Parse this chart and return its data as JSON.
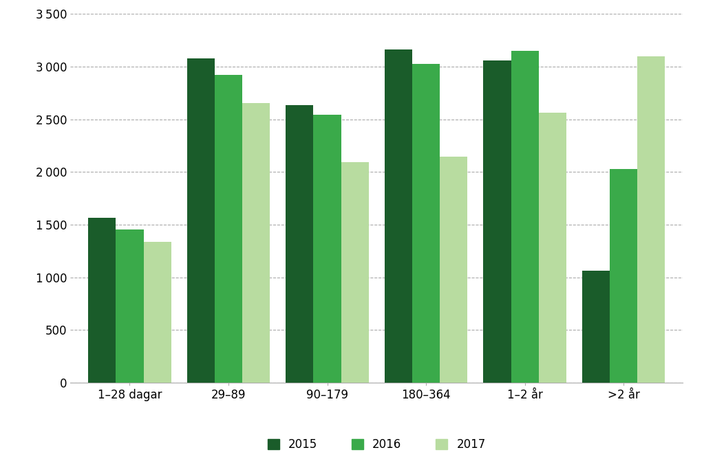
{
  "categories": [
    "1–28 dagar",
    "29–89",
    "90–179",
    "180–364",
    "1–2 år",
    ">2 år"
  ],
  "series": {
    "2015": [
      1565,
      3080,
      2635,
      3160,
      3055,
      1065
    ],
    "2016": [
      1455,
      2920,
      2540,
      3025,
      3150,
      2025
    ],
    "2017": [
      1335,
      2650,
      2095,
      2145,
      2560,
      3095
    ]
  },
  "colors": {
    "2015": "#1a5c2a",
    "2016": "#3aaa4a",
    "2017": "#b8dca0"
  },
  "legend_labels": [
    "2015",
    "2016",
    "2017"
  ],
  "ylim": [
    0,
    3500
  ],
  "yticks": [
    0,
    500,
    1000,
    1500,
    2000,
    2500,
    3000,
    3500
  ],
  "bar_width": 0.28,
  "background_color": "#ffffff",
  "grid_color": "#aaaaaa",
  "spine_color": "#aaaaaa"
}
